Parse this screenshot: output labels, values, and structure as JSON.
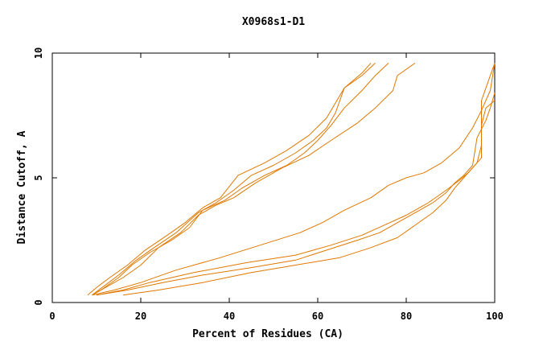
{
  "chart_data": {
    "type": "line",
    "title": "X0968s1-D1",
    "xlabel": "Percent of Residues (CA)",
    "ylabel": "Distance Cutoff, A",
    "xlim": [
      0,
      100
    ],
    "ylim": [
      0,
      10
    ],
    "x_ticks": [
      0,
      20,
      40,
      60,
      80,
      100
    ],
    "y_ticks": [
      0,
      5,
      10
    ],
    "grid": false,
    "legend": "none",
    "line_color": "#e07800",
    "series": [
      {
        "points": [
          [
            8,
            0.3
          ],
          [
            10,
            0.6
          ],
          [
            13,
            1.0
          ],
          [
            17,
            1.5
          ],
          [
            21,
            2.1
          ],
          [
            26,
            2.7
          ],
          [
            30,
            3.2
          ],
          [
            34,
            3.8
          ],
          [
            38,
            4.2
          ],
          [
            42,
            5.1
          ],
          [
            48,
            5.6
          ],
          [
            53,
            6.1
          ],
          [
            58,
            6.7
          ],
          [
            62,
            7.4
          ],
          [
            66,
            8.6
          ],
          [
            70,
            9.2
          ],
          [
            72,
            9.6
          ]
        ]
      },
      {
        "points": [
          [
            9,
            0.3
          ],
          [
            12,
            0.7
          ],
          [
            15,
            1.1
          ],
          [
            19,
            1.7
          ],
          [
            23,
            2.2
          ],
          [
            28,
            2.8
          ],
          [
            33,
            3.6
          ],
          [
            37,
            4.0
          ],
          [
            41,
            4.5
          ],
          [
            45,
            5.1
          ],
          [
            50,
            5.5
          ],
          [
            55,
            6.0
          ],
          [
            59,
            6.5
          ],
          [
            62,
            7.0
          ],
          [
            64,
            7.6
          ],
          [
            66,
            8.6
          ],
          [
            70,
            9.1
          ],
          [
            73,
            9.6
          ]
        ]
      },
      {
        "points": [
          [
            9,
            0.3
          ],
          [
            11,
            0.5
          ],
          [
            15,
            1.0
          ],
          [
            18,
            1.5
          ],
          [
            22,
            2.0
          ],
          [
            27,
            2.5
          ],
          [
            31,
            3.0
          ],
          [
            34,
            3.7
          ],
          [
            39,
            4.1
          ],
          [
            43,
            4.6
          ],
          [
            48,
            5.1
          ],
          [
            53,
            5.5
          ],
          [
            57,
            6.0
          ],
          [
            60,
            6.5
          ],
          [
            63,
            7.1
          ],
          [
            66,
            7.8
          ],
          [
            70,
            8.5
          ],
          [
            73,
            9.1
          ],
          [
            76,
            9.6
          ]
        ]
      },
      {
        "points": [
          [
            9,
            0.3
          ],
          [
            12,
            0.6
          ],
          [
            16,
            1.0
          ],
          [
            20,
            1.5
          ],
          [
            24,
            2.2
          ],
          [
            29,
            2.8
          ],
          [
            33,
            3.5
          ],
          [
            37,
            3.9
          ],
          [
            41,
            4.2
          ],
          [
            46,
            4.8
          ],
          [
            52,
            5.4
          ],
          [
            58,
            5.9
          ],
          [
            63,
            6.5
          ],
          [
            69,
            7.2
          ],
          [
            73,
            7.8
          ],
          [
            77,
            8.5
          ],
          [
            78,
            9.1
          ],
          [
            82,
            9.6
          ]
        ]
      },
      {
        "points": [
          [
            9,
            0.3
          ],
          [
            14,
            0.5
          ],
          [
            20,
            0.8
          ],
          [
            28,
            1.3
          ],
          [
            38,
            1.8
          ],
          [
            47,
            2.3
          ],
          [
            56,
            2.8
          ],
          [
            61,
            3.2
          ],
          [
            66,
            3.7
          ],
          [
            72,
            4.2
          ],
          [
            76,
            4.7
          ],
          [
            80,
            5.0
          ],
          [
            84,
            5.2
          ],
          [
            88,
            5.6
          ],
          [
            92,
            6.2
          ],
          [
            95,
            7.0
          ],
          [
            97,
            7.7
          ],
          [
            99,
            8.5
          ],
          [
            100,
            9.6
          ]
        ]
      },
      {
        "points": [
          [
            10,
            0.3
          ],
          [
            16,
            0.5
          ],
          [
            22,
            0.8
          ],
          [
            32,
            1.2
          ],
          [
            44,
            1.6
          ],
          [
            55,
            1.9
          ],
          [
            63,
            2.3
          ],
          [
            70,
            2.7
          ],
          [
            75,
            3.1
          ],
          [
            80,
            3.5
          ],
          [
            85,
            4.0
          ],
          [
            89,
            4.5
          ],
          [
            92,
            4.9
          ],
          [
            94,
            5.2
          ],
          [
            96,
            5.6
          ],
          [
            97,
            6.3
          ],
          [
            97,
            7.1
          ],
          [
            98,
            7.8
          ],
          [
            100,
            8.1
          ]
        ]
      },
      {
        "points": [
          [
            10,
            0.3
          ],
          [
            17,
            0.5
          ],
          [
            25,
            0.8
          ],
          [
            34,
            1.1
          ],
          [
            45,
            1.4
          ],
          [
            55,
            1.7
          ],
          [
            62,
            2.1
          ],
          [
            69,
            2.5
          ],
          [
            74,
            2.8
          ],
          [
            78,
            3.2
          ],
          [
            82,
            3.6
          ],
          [
            86,
            4.0
          ],
          [
            89,
            4.4
          ],
          [
            91,
            4.8
          ],
          [
            93,
            5.1
          ],
          [
            95,
            5.5
          ],
          [
            96,
            6.6
          ],
          [
            98,
            7.3
          ],
          [
            99,
            7.8
          ],
          [
            100,
            8.4
          ]
        ]
      },
      {
        "points": [
          [
            16,
            0.3
          ],
          [
            24,
            0.5
          ],
          [
            34,
            0.8
          ],
          [
            45,
            1.2
          ],
          [
            55,
            1.5
          ],
          [
            65,
            1.8
          ],
          [
            72,
            2.2
          ],
          [
            78,
            2.6
          ],
          [
            82,
            3.1
          ],
          [
            86,
            3.6
          ],
          [
            89,
            4.1
          ],
          [
            91,
            4.6
          ],
          [
            93,
            5.0
          ],
          [
            95,
            5.4
          ],
          [
            97,
            5.8
          ],
          [
            97,
            7.1
          ],
          [
            97,
            8.1
          ],
          [
            98,
            8.6
          ],
          [
            100,
            9.6
          ]
        ]
      }
    ]
  }
}
